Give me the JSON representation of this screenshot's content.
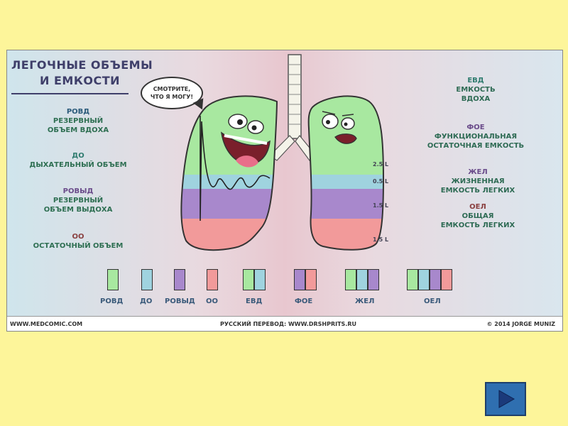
{
  "title": {
    "line1": "ЛЕГОЧНЫЕ ОБЪЕМЫ",
    "line2": "И ЕМКОСТИ"
  },
  "bubble": {
    "line1": "СМОТРИТЕ,",
    "line2": "ЧТО Я МОГУ!"
  },
  "left_legend": [
    {
      "abbr": "РОВД",
      "text1": "РЕЗЕРВНЫЙ",
      "text2": "ОБЪЕМ ВДОХА"
    },
    {
      "abbr": "ДО",
      "text1": "ДЫХАТЕЛЬНЫЙ ОБЪЕМ",
      "text2": ""
    },
    {
      "abbr": "РОВЫД",
      "text1": "РЕЗЕРВНЫЙ",
      "text2": "ОБЪЕМ ВЫДОХА"
    },
    {
      "abbr": "ОО",
      "text1": "ОСТАТОЧНЫЙ ОБЪЕМ",
      "text2": ""
    }
  ],
  "right_legend": [
    {
      "abbr": "ЕВД",
      "text1": "ЕМКОСТЬ",
      "text2": "ВДОХА"
    },
    {
      "abbr": "ФОЕ",
      "text1": "ФУНКЦИОНАЛЬНАЯ",
      "text2": "ОСТАТОЧНАЯ ЕМКОСТЬ"
    },
    {
      "abbr": "ЖЕЛ",
      "text1": "ЖИЗНЕННАЯ",
      "text2": "ЕМКОСТЬ ЛЕГКИХ"
    },
    {
      "abbr": "ОЕЛ",
      "text1": "ОБЩАЯ",
      "text2": "ЕМКОСТЬ ЛЕГКИХ"
    }
  ],
  "volumes": [
    "2.5 L",
    "0.5 L",
    "1.5 L",
    "1.5 L"
  ],
  "colors": {
    "green": "#a8e8a0",
    "blue": "#9fd3df",
    "violet": "#a888cc",
    "red": "#f29a9a"
  },
  "swatch_labels": [
    "РОВД",
    "ДО",
    "РОВЫД",
    "ОО",
    "ЕВД",
    "ФОЕ",
    "ЖЕЛ",
    "ОЕЛ"
  ],
  "footer": {
    "left": "WWW.MEDCOMIC.COM",
    "center": "РУССКИЙ ПЕРЕВОД: WWW.DRSHPRITS.RU",
    "right": "© 2014 JORGE MUNIZ"
  },
  "nav": {
    "next_icon": "play-arrow-icon"
  }
}
